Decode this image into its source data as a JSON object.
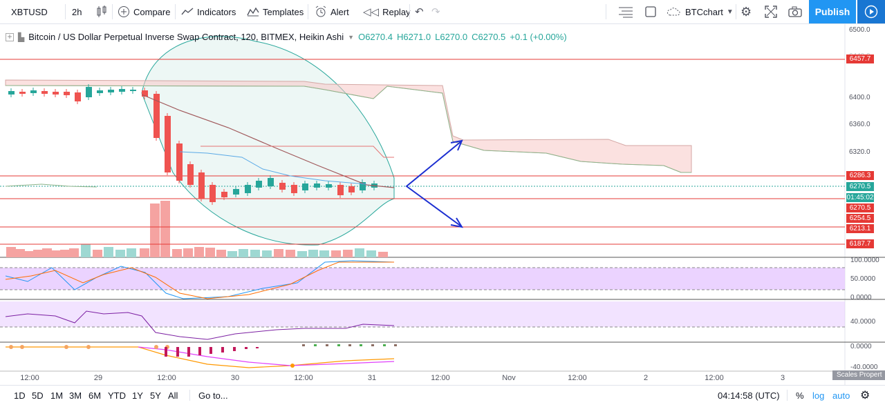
{
  "toolbar": {
    "symbol": "XBTUSD",
    "interval": "2h",
    "compare": "Compare",
    "indicators": "Indicators",
    "templates": "Templates",
    "alert": "Alert",
    "replay": "Replay",
    "layout_name": "BTCchart",
    "publish": "Publish"
  },
  "legend": {
    "title": "Bitcoin / US Dollar Perpetual Inverse Swap Contract, 120, BITMEX, Heikin Ashi",
    "open": "O6270.4",
    "high": "H6271.0",
    "low": "L6270.0",
    "close": "C6270.5",
    "change": "+0.1 (+0.00%)"
  },
  "price_axis": {
    "ticks": [
      "6500.0",
      "6440.0",
      "6400.0",
      "6360.0",
      "6320.0"
    ],
    "badges": [
      {
        "text": "6457.7",
        "color": "#e53935"
      },
      {
        "text": "6286.3",
        "color": "#e53935"
      },
      {
        "text": "6270.5",
        "color": "#26a69a"
      },
      {
        "text": "01:45:02",
        "color": "#26a69a"
      },
      {
        "text": "6270.5",
        "color": "#e53935"
      },
      {
        "text": "6254.5",
        "color": "#e53935"
      },
      {
        "text": "6213.1",
        "color": "#e53935"
      },
      {
        "text": "6187.7",
        "color": "#e53935"
      }
    ]
  },
  "indicator_axes": {
    "pane1": [
      "100.0000",
      "50.0000",
      "0.0000"
    ],
    "pane2": [
      "40.0000"
    ],
    "pane3": [
      "0.0000",
      "-40.0000"
    ]
  },
  "time_axis": [
    "12:00",
    "29",
    "12:00",
    "30",
    "12:00",
    "31",
    "12:00",
    "Nov",
    "12:00",
    "2",
    "12:00",
    "3"
  ],
  "bottom_bar": {
    "ranges": [
      "1D",
      "5D",
      "1M",
      "3M",
      "6M",
      "YTD",
      "1Y",
      "5Y",
      "All"
    ],
    "goto": "Go to...",
    "clock": "04:14:58 (UTC)",
    "percent": "%",
    "log": "log",
    "auto": "auto",
    "scales_properties": "Scales Propert"
  },
  "colors": {
    "up": "#26a69a",
    "down": "#ef5350",
    "hline": "#e53935",
    "arrow": "#1c2fd1",
    "cloud": "#f8c9c6",
    "band": "#e8f5f2",
    "osc_fill": "#e6c8ff",
    "publish": "#2196f3"
  }
}
